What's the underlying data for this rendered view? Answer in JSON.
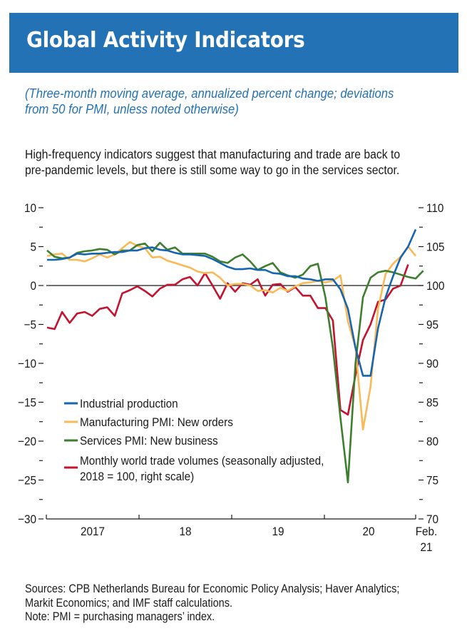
{
  "header": {
    "title": "Global Activity Indicators",
    "subtitle_line1": "(Three-month moving average, annualized percent change; deviations",
    "subtitle_line2": "from 50 for PMI, unless noted otherwise)",
    "lede_line1": "High-frequency indicators suggest that manufacturing and trade are back to",
    "lede_line2": "pre-pandemic levels, but there is still some way to go in the services sector."
  },
  "colors": {
    "title_bar": "#2372b6",
    "subtitle": "#2372b6"
  },
  "chart_data": {
    "type": "line",
    "title": "Global Activity Indicators",
    "x_start": "2017-01",
    "x_end": "2021-02",
    "x_tick_labels": [
      "2017",
      "18",
      "19",
      "20",
      "Feb.",
      "21"
    ],
    "x_categories": [
      "2017",
      "18",
      "19",
      "20",
      "Feb. 21"
    ],
    "left_axis": {
      "label": "",
      "ylim": [
        -30,
        10
      ],
      "ticks": [
        10,
        5,
        0,
        -5,
        -10,
        -15,
        -20,
        -25,
        -30
      ],
      "tick_labels": [
        "10",
        "5",
        "0",
        "−5",
        "−10",
        "−15",
        "−20",
        "−25",
        "−30"
      ]
    },
    "right_axis": {
      "label": "",
      "ylim": [
        70,
        110
      ],
      "ticks": [
        110,
        105,
        100,
        95,
        90,
        85,
        80,
        75,
        70
      ],
      "tick_labels": [
        "110",
        "105",
        "100",
        "95",
        "90",
        "85",
        "80",
        "75",
        "70"
      ]
    },
    "zero_line": 0,
    "grid": false,
    "legend_position": "lower-left",
    "series": [
      {
        "name": "Industrial production",
        "axis": "left",
        "color": "#1565b0",
        "values": [
          3.3,
          3.3,
          3.4,
          3.6,
          4.1,
          4.0,
          4.1,
          4.1,
          4.2,
          4.3,
          4.3,
          4.5,
          4.5,
          4.8,
          4.9,
          4.6,
          4.5,
          4.2,
          4.0,
          4.0,
          3.9,
          3.8,
          3.4,
          2.9,
          2.4,
          2.1,
          2.1,
          2.2,
          2.0,
          2.0,
          1.6,
          1.5,
          1.2,
          1.2,
          0.9,
          0.8,
          0.6,
          0.8,
          0.8,
          -0.5,
          -3.0,
          -8.0,
          -11.6,
          -11.6,
          -5.5,
          -1.5,
          1.2,
          3.6,
          5.0,
          7.2
        ]
      },
      {
        "name": "Manufacturing PMI: New orders",
        "axis": "left",
        "color": "#f9b957",
        "values": [
          3.8,
          4.0,
          4.1,
          3.3,
          3.3,
          3.1,
          3.5,
          4.0,
          3.6,
          4.0,
          4.8,
          5.6,
          5.1,
          4.8,
          3.6,
          3.7,
          3.2,
          2.9,
          2.6,
          2.3,
          1.8,
          1.6,
          1.7,
          1.0,
          0.0,
          0.2,
          0.2,
          0.0,
          -0.7,
          -0.6,
          -0.9,
          -0.3,
          -0.7,
          -0.1,
          0.3,
          0.4,
          0.6,
          0.4,
          0.6,
          1.3,
          -4.6,
          -8.0,
          -18.5,
          -13.0,
          -3.0,
          1.5,
          2.8,
          3.7,
          5.0,
          3.8
        ]
      },
      {
        "name": "Services PMI: New business",
        "axis": "left",
        "color": "#3d7f2e",
        "values": [
          4.5,
          3.7,
          3.5,
          3.6,
          4.2,
          4.4,
          4.5,
          4.7,
          4.6,
          4.0,
          4.5,
          4.5,
          5.2,
          5.4,
          4.4,
          5.5,
          4.6,
          4.9,
          4.1,
          4.1,
          4.1,
          4.1,
          3.7,
          3.1,
          2.9,
          3.6,
          4.0,
          3.1,
          2.0,
          2.5,
          2.9,
          1.7,
          1.3,
          1.0,
          1.4,
          2.5,
          2.8,
          -1.5,
          -8.0,
          -17.0,
          -25.3,
          -10.0,
          -1.5,
          1.0,
          1.7,
          1.9,
          1.7,
          1.4,
          1.1,
          0.9,
          1.9
        ]
      },
      {
        "name": "Monthly world trade volumes (seasonally adjusted, 2018 = 100, right scale)",
        "axis": "right",
        "color": "#c4132f",
        "values": [
          94.6,
          94.4,
          96.6,
          95.2,
          96.4,
          96.6,
          96.1,
          97.0,
          97.2,
          96.1,
          99.0,
          99.4,
          99.9,
          99.3,
          98.6,
          99.6,
          100.1,
          100.1,
          100.8,
          101.1,
          100.0,
          101.6,
          100.0,
          98.3,
          100.3,
          99.2,
          100.3,
          100.1,
          100.8,
          98.7,
          100.1,
          100.2,
          99.2,
          99.8,
          98.7,
          98.7,
          97.1,
          97.1,
          95.5,
          84.0,
          83.4,
          88.5,
          93.0,
          95.0,
          97.9,
          98.2,
          99.6,
          100.0,
          102.7
        ]
      }
    ],
    "annotations": []
  },
  "legend": {
    "items": [
      {
        "label": "Industrial production",
        "color": "#1565b0"
      },
      {
        "label": "Manufacturing PMI: New orders",
        "color": "#f9b957"
      },
      {
        "label": "Services PMI: New business",
        "color": "#3d7f2e"
      },
      {
        "label_line1": "Monthly world trade volumes (seasonally adjusted,",
        "label_line2": "2018 = 100, right scale)",
        "color": "#c4132f"
      }
    ]
  },
  "footer": {
    "sources_line1": "Sources: CPB Netherlands Bureau for Economic Policy Analysis; Haver Analytics;",
    "sources_line2": "Markit Economics; and IMF staff calculations.",
    "note": "Note: PMI = purchasing managers’ index."
  }
}
